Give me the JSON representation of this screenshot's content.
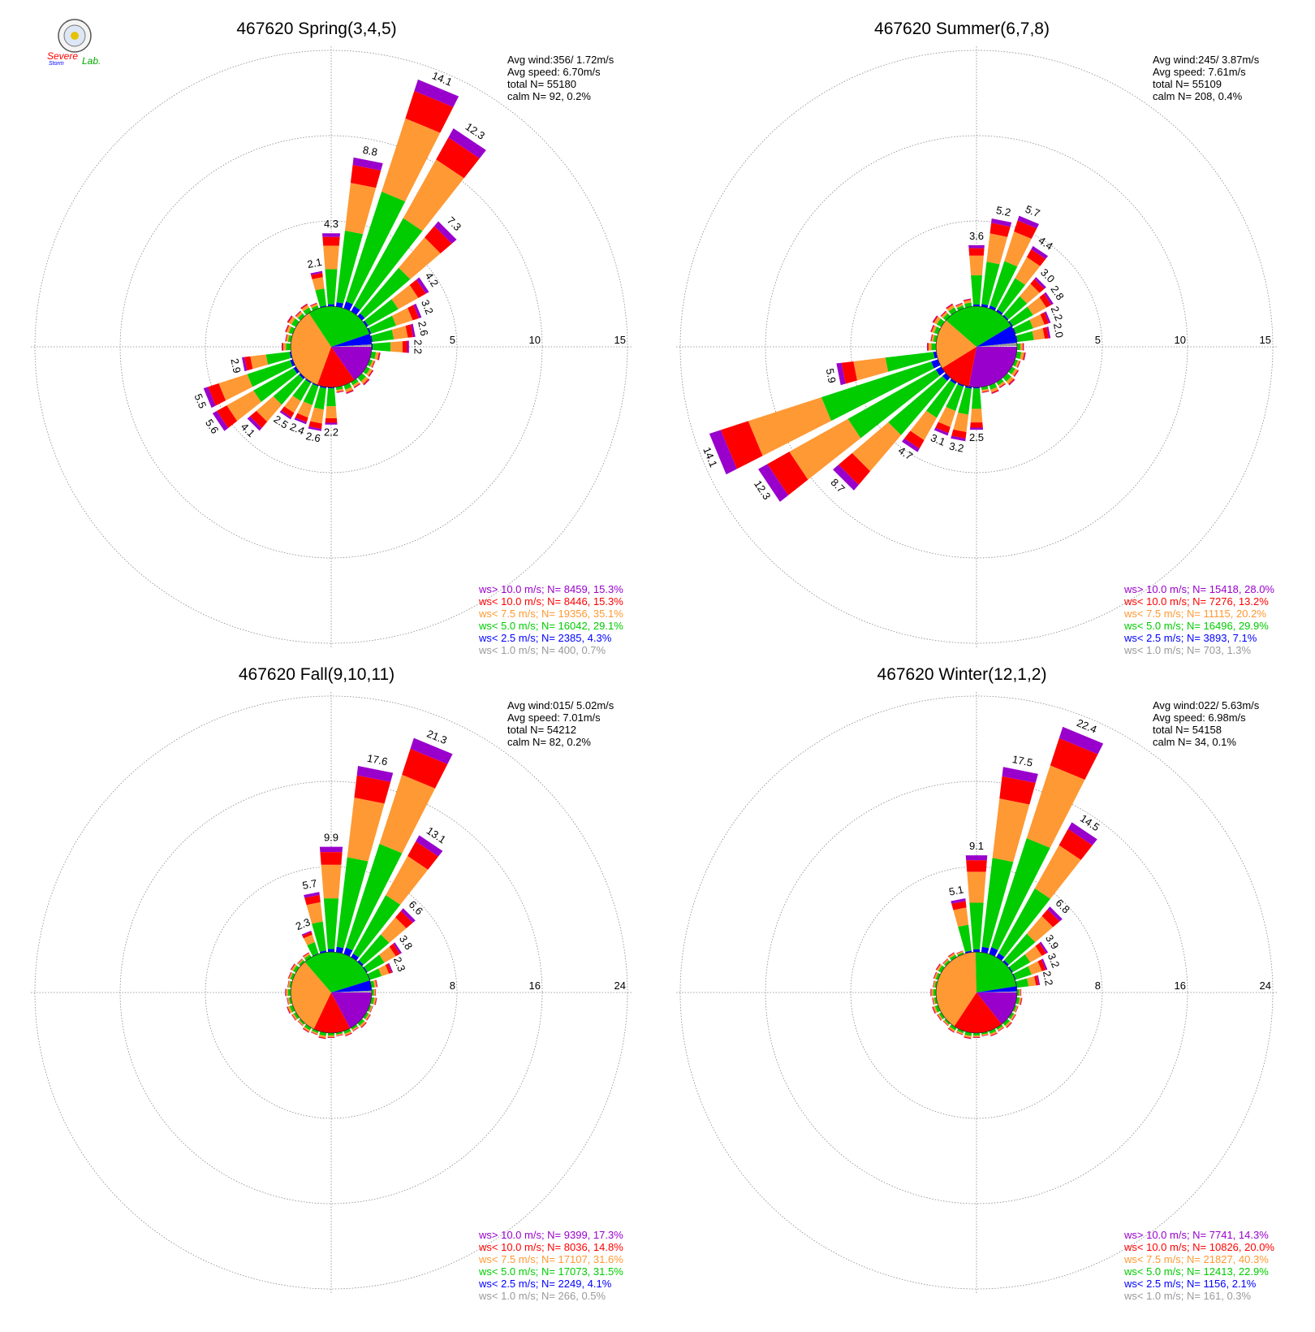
{
  "logo": {
    "text_top": "Severe",
    "text_bottom": "Storm",
    "text_lab": "Lab."
  },
  "colors": {
    "ws_gt_10": "#9900cc",
    "ws_lt_10": "#ff0000",
    "ws_lt_7_5": "#ff9933",
    "ws_lt_5": "#00cc00",
    "ws_lt_2_5": "#0000ff",
    "ws_lt_1": "#999999",
    "grid": "#888888"
  },
  "chart_data": [
    {
      "type": "wind_rose",
      "title": "467620 Spring(3,4,5)",
      "stats": [
        "Avg wind:356/ 1.72m/s",
        "Avg speed: 6.70m/s",
        "total N=      55180",
        "calm N=     92,   0.2%"
      ],
      "ring_values": [
        5,
        10,
        15
      ],
      "ring_labels": [
        "5",
        "10",
        "15"
      ],
      "axis_max": 15,
      "labeled_bars": [
        {
          "dir": 22.5,
          "value": 14.1,
          "label": "14.1"
        },
        {
          "dir": 33.75,
          "value": 12.3,
          "label": "12.3"
        },
        {
          "dir": 11.25,
          "value": 8.8,
          "label": "8.8"
        },
        {
          "dir": 45,
          "value": 7.3,
          "label": "7.3"
        },
        {
          "dir": 0,
          "value": 4.3,
          "label": "4.3"
        },
        {
          "dir": 56.25,
          "value": 4.2,
          "label": "4.2"
        },
        {
          "dir": 67.5,
          "value": 3.2,
          "label": "3.2"
        },
        {
          "dir": 78.75,
          "value": 2.6,
          "label": "2.6"
        },
        {
          "dir": 90,
          "value": 2.2,
          "label": "2.2"
        },
        {
          "dir": -11.25,
          "value": 2.1,
          "label": "2.1"
        },
        {
          "dir": 180,
          "value": 2.2,
          "label": "2.2"
        },
        {
          "dir": 191.25,
          "value": 2.6,
          "label": "2.6"
        },
        {
          "dir": 202.5,
          "value": 2.4,
          "label": "2.4"
        },
        {
          "dir": 213.75,
          "value": 2.5,
          "label": "2.5"
        },
        {
          "dir": 225,
          "value": 4.1,
          "label": "4.1"
        },
        {
          "dir": 236.25,
          "value": 5.6,
          "label": "5.6"
        },
        {
          "dir": 247.5,
          "value": 5.5,
          "label": "5.5"
        },
        {
          "dir": 258.75,
          "value": 2.9,
          "label": "2.9"
        }
      ],
      "calm_pie": [
        {
          "name": "ws> 10.0 m/s",
          "pct": 15.3
        },
        {
          "name": "ws< 10.0 m/s",
          "pct": 15.3
        },
        {
          "name": "ws< 7.5 m/s",
          "pct": 35.1
        },
        {
          "name": "ws< 5.0 m/s",
          "pct": 29.1
        },
        {
          "name": "ws< 2.5 m/s",
          "pct": 4.3
        },
        {
          "name": "ws< 1.0 m/s",
          "pct": 0.7
        }
      ],
      "legend": [
        {
          "text": "ws> 10.0 m/s; N=  8459, 15.3%",
          "color_key": "ws_gt_10"
        },
        {
          "text": "ws< 10.0 m/s; N=  8446, 15.3%",
          "color_key": "ws_lt_10"
        },
        {
          "text": "ws<  7.5 m/s; N= 19356, 35.1%",
          "color_key": "ws_lt_7_5"
        },
        {
          "text": "ws<  5.0 m/s; N= 16042, 29.1%",
          "color_key": "ws_lt_5"
        },
        {
          "text": "ws<  2.5 m/s; N=  2385,  4.3%",
          "color_key": "ws_lt_2_5"
        },
        {
          "text": "ws<  1.0 m/s; N=   400,  0.7%",
          "color_key": "ws_lt_1"
        }
      ]
    },
    {
      "type": "wind_rose",
      "title": "467620 Summer(6,7,8)",
      "stats": [
        "Avg wind:245/ 3.87m/s",
        "Avg speed: 7.61m/s",
        "total N=      55109",
        "calm N=    208,   0.4%"
      ],
      "ring_values": [
        5,
        10,
        15
      ],
      "ring_labels": [
        "5",
        "10",
        "15"
      ],
      "axis_max": 15,
      "labeled_bars": [
        {
          "dir": 247.5,
          "value": 14.1,
          "label": "14.1"
        },
        {
          "dir": 236.25,
          "value": 12.3,
          "label": "12.3"
        },
        {
          "dir": 225,
          "value": 8.7,
          "label": "8.7"
        },
        {
          "dir": 258.75,
          "value": 5.9,
          "label": "5.9"
        },
        {
          "dir": 213.75,
          "value": 4.7,
          "label": "4.7"
        },
        {
          "dir": 202.5,
          "value": 3.1,
          "label": "3.1"
        },
        {
          "dir": 191.25,
          "value": 3.2,
          "label": "3.2"
        },
        {
          "dir": 180,
          "value": 2.5,
          "label": "2.5"
        },
        {
          "dir": 22.5,
          "value": 5.7,
          "label": "5.7"
        },
        {
          "dir": 11.25,
          "value": 5.2,
          "label": "5.2"
        },
        {
          "dir": 33.75,
          "value": 4.4,
          "label": "4.4"
        },
        {
          "dir": 0,
          "value": 3.6,
          "label": "3.6"
        },
        {
          "dir": 45,
          "value": 3.0,
          "label": "3.0"
        },
        {
          "dir": 56.25,
          "value": 2.8,
          "label": "2.8"
        },
        {
          "dir": 67.5,
          "value": 2.2,
          "label": "2.2"
        },
        {
          "dir": 78.75,
          "value": 2.0,
          "label": "2.0"
        }
      ],
      "calm_pie": [
        {
          "name": "ws> 10.0 m/s",
          "pct": 28.0
        },
        {
          "name": "ws< 10.0 m/s",
          "pct": 13.2
        },
        {
          "name": "ws< 7.5 m/s",
          "pct": 20.2
        },
        {
          "name": "ws< 5.0 m/s",
          "pct": 29.9
        },
        {
          "name": "ws< 2.5 m/s",
          "pct": 7.1
        },
        {
          "name": "ws< 1.0 m/s",
          "pct": 1.3
        }
      ],
      "legend": [
        {
          "text": "ws> 10.0 m/s; N= 15418, 28.0%",
          "color_key": "ws_gt_10"
        },
        {
          "text": "ws< 10.0 m/s; N=  7276, 13.2%",
          "color_key": "ws_lt_10"
        },
        {
          "text": "ws<  7.5 m/s; N= 11115, 20.2%",
          "color_key": "ws_lt_7_5"
        },
        {
          "text": "ws<  5.0 m/s; N= 16496, 29.9%",
          "color_key": "ws_lt_5"
        },
        {
          "text": "ws<  2.5 m/s; N=  3893,  7.1%",
          "color_key": "ws_lt_2_5"
        },
        {
          "text": "ws<  1.0 m/s; N=   703,  1.3%",
          "color_key": "ws_lt_1"
        }
      ]
    },
    {
      "type": "wind_rose",
      "title": "467620 Fall(9,10,11)",
      "stats": [
        "Avg wind:015/ 5.02m/s",
        "Avg speed: 7.01m/s",
        "total N=      54212",
        "calm N=     82,   0.2%"
      ],
      "ring_values": [
        8,
        16,
        24
      ],
      "ring_labels": [
        "8",
        "16",
        "24"
      ],
      "axis_max": 24,
      "labeled_bars": [
        {
          "dir": 22.5,
          "value": 21.3,
          "label": "21.3"
        },
        {
          "dir": 11.25,
          "value": 17.6,
          "label": "17.6"
        },
        {
          "dir": 33.75,
          "value": 13.1,
          "label": "13.1"
        },
        {
          "dir": 0,
          "value": 9.9,
          "label": "9.9"
        },
        {
          "dir": 45,
          "value": 6.6,
          "label": "6.6"
        },
        {
          "dir": -11.25,
          "value": 5.7,
          "label": "5.7"
        },
        {
          "dir": 56.25,
          "value": 3.8,
          "label": "3.8"
        },
        {
          "dir": 67.5,
          "value": 2.3,
          "label": "2.3"
        },
        {
          "dir": -22.5,
          "value": 2.3,
          "label": "2.3"
        }
      ],
      "calm_pie": [
        {
          "name": "ws> 10.0 m/s",
          "pct": 17.3
        },
        {
          "name": "ws< 10.0 m/s",
          "pct": 14.8
        },
        {
          "name": "ws< 7.5 m/s",
          "pct": 31.6
        },
        {
          "name": "ws< 5.0 m/s",
          "pct": 31.5
        },
        {
          "name": "ws< 2.5 m/s",
          "pct": 4.1
        },
        {
          "name": "ws< 1.0 m/s",
          "pct": 0.5
        }
      ],
      "legend": [
        {
          "text": "ws> 10.0 m/s; N=  9399, 17.3%",
          "color_key": "ws_gt_10"
        },
        {
          "text": "ws< 10.0 m/s; N=  8036, 14.8%",
          "color_key": "ws_lt_10"
        },
        {
          "text": "ws<  7.5 m/s; N= 17107, 31.6%",
          "color_key": "ws_lt_7_5"
        },
        {
          "text": "ws<  5.0 m/s; N= 17073, 31.5%",
          "color_key": "ws_lt_5"
        },
        {
          "text": "ws<  2.5 m/s; N=  2249,  4.1%",
          "color_key": "ws_lt_2_5"
        },
        {
          "text": "ws<  1.0 m/s; N=   266,  0.5%",
          "color_key": "ws_lt_1"
        }
      ]
    },
    {
      "type": "wind_rose",
      "title": "467620 Winter(12,1,2)",
      "stats": [
        "Avg wind:022/ 5.63m/s",
        "Avg speed: 6.98m/s",
        "total N=      54158",
        "calm N=     34,   0.1%"
      ],
      "ring_values": [
        8,
        16,
        24
      ],
      "ring_labels": [
        "8",
        "16",
        "24"
      ],
      "axis_max": 24,
      "labeled_bars": [
        {
          "dir": 22.5,
          "value": 22.4,
          "label": "22.4"
        },
        {
          "dir": 11.25,
          "value": 17.5,
          "label": "17.5"
        },
        {
          "dir": 33.75,
          "value": 14.5,
          "label": "14.5"
        },
        {
          "dir": 0,
          "value": 9.1,
          "label": "9.1"
        },
        {
          "dir": 45,
          "value": 6.8,
          "label": "6.8"
        },
        {
          "dir": -11.25,
          "value": 5.1,
          "label": "5.1"
        },
        {
          "dir": 56.25,
          "value": 3.9,
          "label": "3.9"
        },
        {
          "dir": 67.5,
          "value": 3.2,
          "label": "3.2"
        },
        {
          "dir": 78.75,
          "value": 2.2,
          "label": "2.2"
        }
      ],
      "calm_pie": [
        {
          "name": "ws> 10.0 m/s",
          "pct": 14.3
        },
        {
          "name": "ws< 10.0 m/s",
          "pct": 20.0
        },
        {
          "name": "ws< 7.5 m/s",
          "pct": 40.3
        },
        {
          "name": "ws< 5.0 m/s",
          "pct": 22.9
        },
        {
          "name": "ws< 2.5 m/s",
          "pct": 2.1
        },
        {
          "name": "ws< 1.0 m/s",
          "pct": 0.3
        }
      ],
      "legend": [
        {
          "text": "ws> 10.0 m/s; N=  7741, 14.3%",
          "color_key": "ws_gt_10"
        },
        {
          "text": "ws< 10.0 m/s; N= 10826, 20.0%",
          "color_key": "ws_lt_10"
        },
        {
          "text": "ws<  7.5 m/s; N= 21827, 40.3%",
          "color_key": "ws_lt_7_5"
        },
        {
          "text": "ws<  5.0 m/s; N= 12413, 22.9%",
          "color_key": "ws_lt_5"
        },
        {
          "text": "ws<  2.5 m/s; N=  1156,  2.1%",
          "color_key": "ws_lt_2_5"
        },
        {
          "text": "ws<  1.0 m/s; N=   161,  0.3%",
          "color_key": "ws_lt_1"
        }
      ]
    }
  ]
}
